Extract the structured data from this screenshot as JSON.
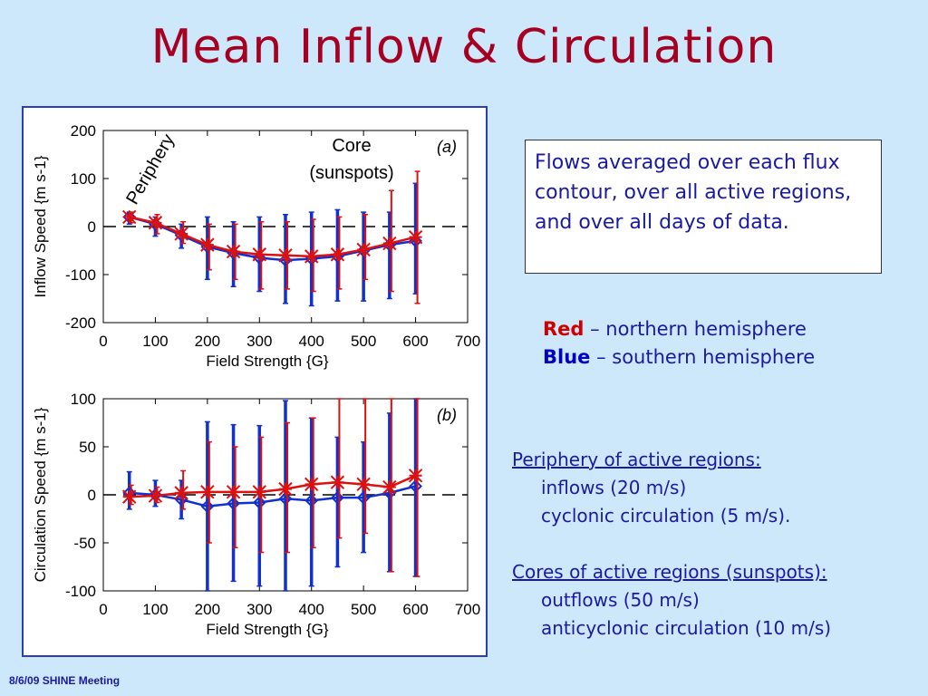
{
  "slide": {
    "title": "Mean Inflow & Circulation",
    "footer": "8/6/09 SHINE Meeting"
  },
  "description": "Flows averaged over each flux contour, over all active regions, and over all days of data.",
  "legend": {
    "red_key": "Red",
    "red_text": " – northern hemisphere",
    "blue_key": "Blue",
    "blue_text": " – southern hemisphere"
  },
  "summary": {
    "periphery_heading": "Periphery of active regions:",
    "periphery_lines": [
      "inflows (20 m/s)",
      "cyclonic circulation (5 m/s)."
    ],
    "core_heading": "Cores of active regions (sunspots):",
    "core_lines": [
      "outflows (50 m/s)",
      "anticyclonic circulation (10 m/s)"
    ]
  },
  "annotations": {
    "periphery": "Periphery",
    "core_line1": "Core",
    "core_line2": "(sunspots)"
  },
  "colors": {
    "north": "#dd1010",
    "south": "#1030d0",
    "title": "#a50021"
  },
  "chart_data": [
    {
      "type": "line",
      "panel_label": "(a)",
      "xlabel": "Field Strength {G}",
      "ylabel": "Inflow Speed {m s-1}",
      "xlim": [
        0,
        700
      ],
      "ylim": [
        -200,
        200
      ],
      "xticks": [
        0,
        100,
        200,
        300,
        400,
        500,
        600,
        700
      ],
      "yticks": [
        -200,
        -100,
        0,
        100,
        200
      ],
      "zero_line": "dashed",
      "x": [
        50,
        100,
        150,
        200,
        250,
        300,
        350,
        400,
        450,
        500,
        550,
        600
      ],
      "series": [
        {
          "hemisphere": "south",
          "color": "blue",
          "marker": "diamond",
          "values": [
            20,
            5,
            -18,
            -42,
            -55,
            -65,
            -70,
            -67,
            -62,
            -50,
            -38,
            -30
          ],
          "err_low": [
            5,
            -20,
            -45,
            -110,
            -125,
            -135,
            -160,
            -165,
            -155,
            -155,
            -150,
            -140
          ],
          "err_high": [
            30,
            20,
            5,
            20,
            10,
            20,
            25,
            30,
            35,
            30,
            30,
            90
          ]
        },
        {
          "hemisphere": "north",
          "color": "red",
          "marker": "asterisk",
          "values": [
            20,
            8,
            -15,
            -38,
            -52,
            -58,
            -60,
            -62,
            -58,
            -48,
            -35,
            -22
          ],
          "err_low": [
            8,
            -15,
            -35,
            -90,
            -110,
            -130,
            -130,
            -135,
            -130,
            -110,
            -135,
            -160
          ],
          "err_high": [
            30,
            25,
            10,
            5,
            5,
            10,
            10,
            15,
            20,
            25,
            75,
            115
          ]
        }
      ]
    },
    {
      "type": "line",
      "panel_label": "(b)",
      "xlabel": "Field Strength {G}",
      "ylabel": "Circulation Speed {m s-1}",
      "xlim": [
        0,
        700
      ],
      "ylim": [
        -100,
        100
      ],
      "xticks": [
        0,
        100,
        200,
        300,
        400,
        500,
        600,
        700
      ],
      "yticks": [
        -100,
        -50,
        0,
        50,
        100
      ],
      "zero_line": "dashed",
      "x": [
        50,
        100,
        150,
        200,
        250,
        300,
        350,
        400,
        450,
        500,
        550,
        600
      ],
      "series": [
        {
          "hemisphere": "south",
          "color": "blue",
          "marker": "diamond",
          "values": [
            2,
            0,
            -5,
            -12,
            -9,
            -8,
            -4,
            -6,
            -3,
            -3,
            2,
            9
          ],
          "err_low": [
            -15,
            -12,
            -25,
            -100,
            -90,
            -95,
            -100,
            -95,
            -75,
            -60,
            -80,
            -85
          ],
          "err_high": [
            24,
            15,
            15,
            76,
            73,
            72,
            98,
            80,
            60,
            55,
            85,
            100
          ]
        },
        {
          "hemisphere": "north",
          "color": "red",
          "marker": "asterisk",
          "values": [
            -2,
            -1,
            2,
            3,
            3,
            3,
            6,
            11,
            13,
            11,
            8,
            20
          ],
          "err_low": [
            -10,
            -8,
            -15,
            -50,
            -55,
            -60,
            -60,
            -55,
            -45,
            -40,
            -80,
            -85
          ],
          "err_high": [
            10,
            8,
            25,
            55,
            50,
            60,
            75,
            80,
            100,
            100,
            100,
            100
          ]
        }
      ]
    }
  ]
}
